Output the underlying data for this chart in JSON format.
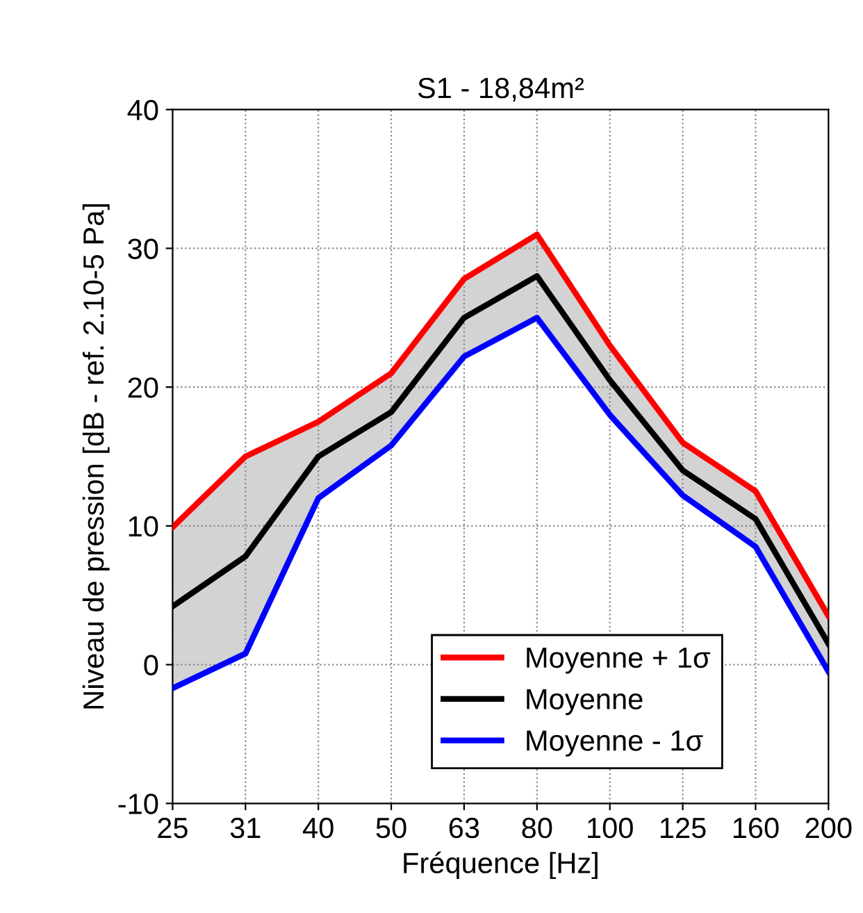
{
  "chart_data": {
    "type": "line",
    "title": "S1 - 18,84m²",
    "xlabel": "Fréquence [Hz]",
    "ylabel": "Niveau de pression [dB - ref. 2.10-5 Pa]",
    "categories": [
      "25",
      "31",
      "40",
      "50",
      "63",
      "80",
      "100",
      "125",
      "160",
      "200"
    ],
    "series": [
      {
        "name": "Moyenne + 1σ",
        "color": "#ff0000",
        "values": [
          9.9,
          15,
          17.5,
          21,
          27.8,
          31,
          23,
          16,
          12.5,
          3.5
        ]
      },
      {
        "name": "Moyenne",
        "color": "#000000",
        "values": [
          4.2,
          7.8,
          15,
          18.2,
          25,
          28,
          20.5,
          14,
          10.5,
          1.5
        ],
        "lower": [
          -1.7,
          0.8,
          12,
          15.8,
          22.2,
          25,
          18,
          12.2,
          8.5,
          -0.5
        ],
        "upper": [
          9.9,
          15,
          17.5,
          21,
          27.8,
          31,
          23,
          16,
          12.5,
          3.5
        ]
      },
      {
        "name": "Moyenne - 1σ",
        "color": "#0000ff",
        "values": [
          -1.7,
          0.8,
          12,
          15.8,
          22.2,
          25,
          18,
          12.2,
          8.5,
          -0.5
        ]
      }
    ],
    "ylim": [
      -10,
      40
    ],
    "yticks": [
      -10,
      0,
      10,
      20,
      30,
      40
    ],
    "grid": true,
    "legend": "bottom right",
    "line_style": "solid",
    "marker": "none"
  }
}
